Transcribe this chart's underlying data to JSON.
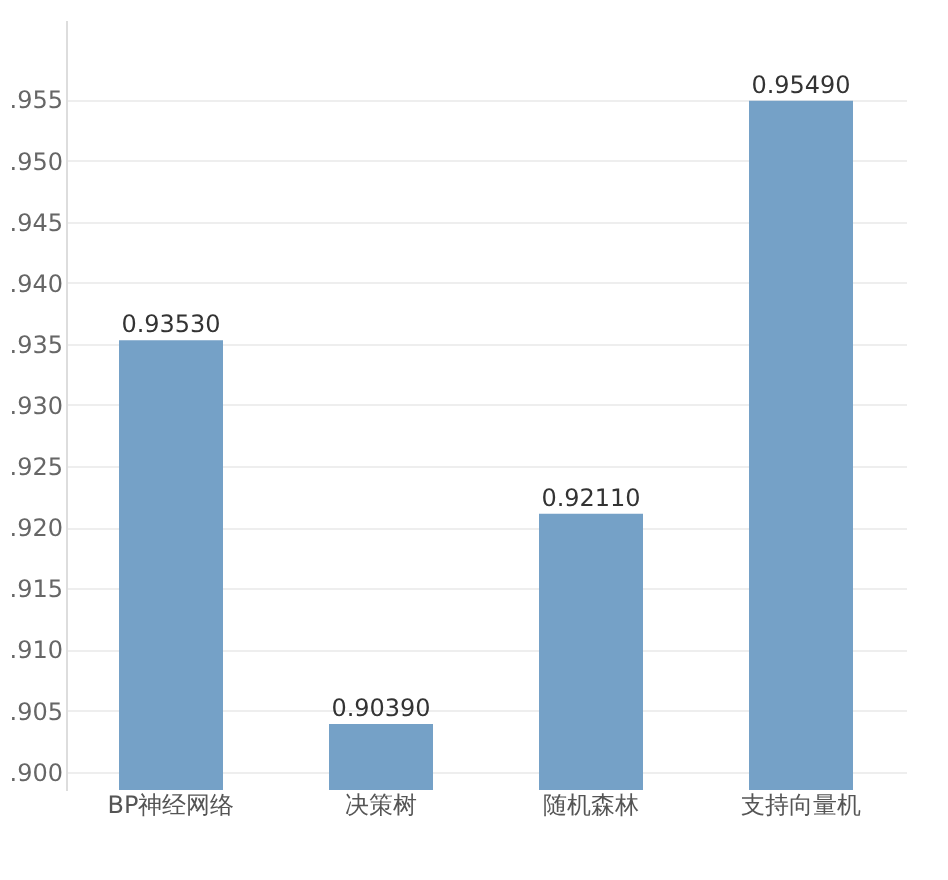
{
  "chart_data": {
    "type": "bar",
    "categories": [
      "BP神经网络",
      "决策树",
      "随机森林",
      "支持向量机"
    ],
    "values": [
      0.9353,
      0.9039,
      0.9211,
      0.9549
    ],
    "value_labels": [
      "0.93530",
      "0.90390",
      "0.92110",
      "0.95490"
    ],
    "color": "#75a1c7",
    "ylim": [
      0.8985,
      0.9615
    ],
    "yticks": [
      {
        "value": 0.9,
        "label": ".900"
      },
      {
        "value": 0.905,
        "label": ".905"
      },
      {
        "value": 0.91,
        "label": ".910"
      },
      {
        "value": 0.915,
        "label": ".915"
      },
      {
        "value": 0.92,
        "label": ".920"
      },
      {
        "value": 0.925,
        "label": ".925"
      },
      {
        "value": 0.93,
        "label": ".930"
      },
      {
        "value": 0.935,
        "label": ".935"
      },
      {
        "value": 0.94,
        "label": ".940"
      },
      {
        "value": 0.945,
        "label": ".945"
      },
      {
        "value": 0.95,
        "label": ".950"
      },
      {
        "value": 0.955,
        "label": ".955"
      }
    ],
    "grid": "y"
  }
}
